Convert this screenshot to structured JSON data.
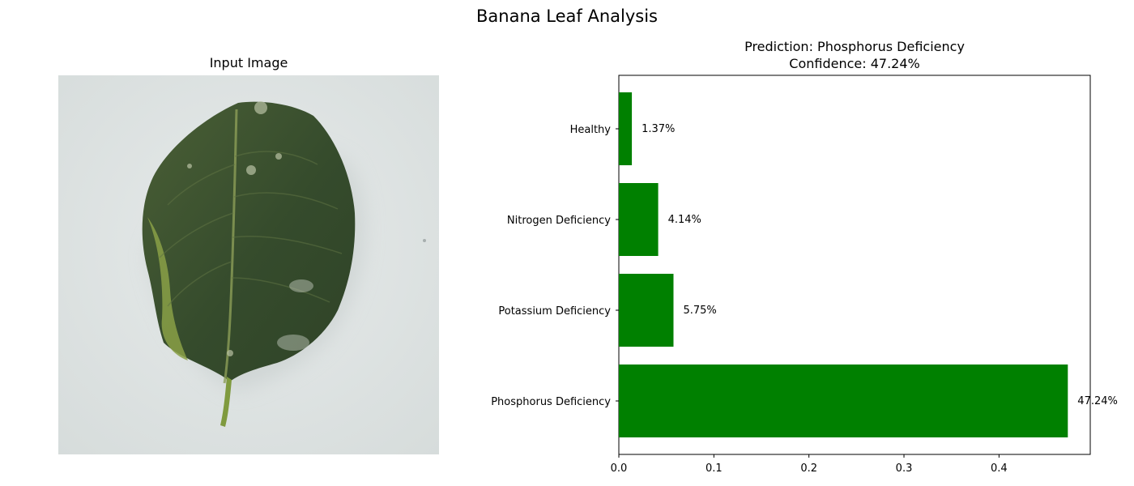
{
  "figure": {
    "suptitle": "Banana Leaf Analysis",
    "image_title": "Input Image",
    "chart_title_line1": "Prediction: Phosphorus Deficiency",
    "chart_title_line2": "Confidence: 47.24%"
  },
  "colors": {
    "bar": "#008000",
    "background_photo": "#dde2e1",
    "leaf_dark": "#3d5430",
    "leaf_light": "#7f9a3e"
  },
  "chart_data": {
    "type": "bar",
    "orientation": "horizontal",
    "title": "Prediction: Phosphorus Deficiency\nConfidence: 47.24%",
    "categories": [
      "Phosphorus Deficiency",
      "Potassium Deficiency",
      "Nitrogen Deficiency",
      "Healthy"
    ],
    "values": [
      0.4724,
      0.0575,
      0.0414,
      0.0137
    ],
    "value_labels": [
      "47.24%",
      "5.75%",
      "4.14%",
      "1.37%"
    ],
    "xticks": [
      0.0,
      0.1,
      0.2,
      0.3,
      0.4
    ],
    "xtick_labels": [
      "0.0",
      "0.1",
      "0.2",
      "0.3",
      "0.4"
    ],
    "xlim": [
      0,
      0.496
    ],
    "xlabel": "",
    "ylabel": "",
    "grid": false,
    "legend": "none"
  }
}
